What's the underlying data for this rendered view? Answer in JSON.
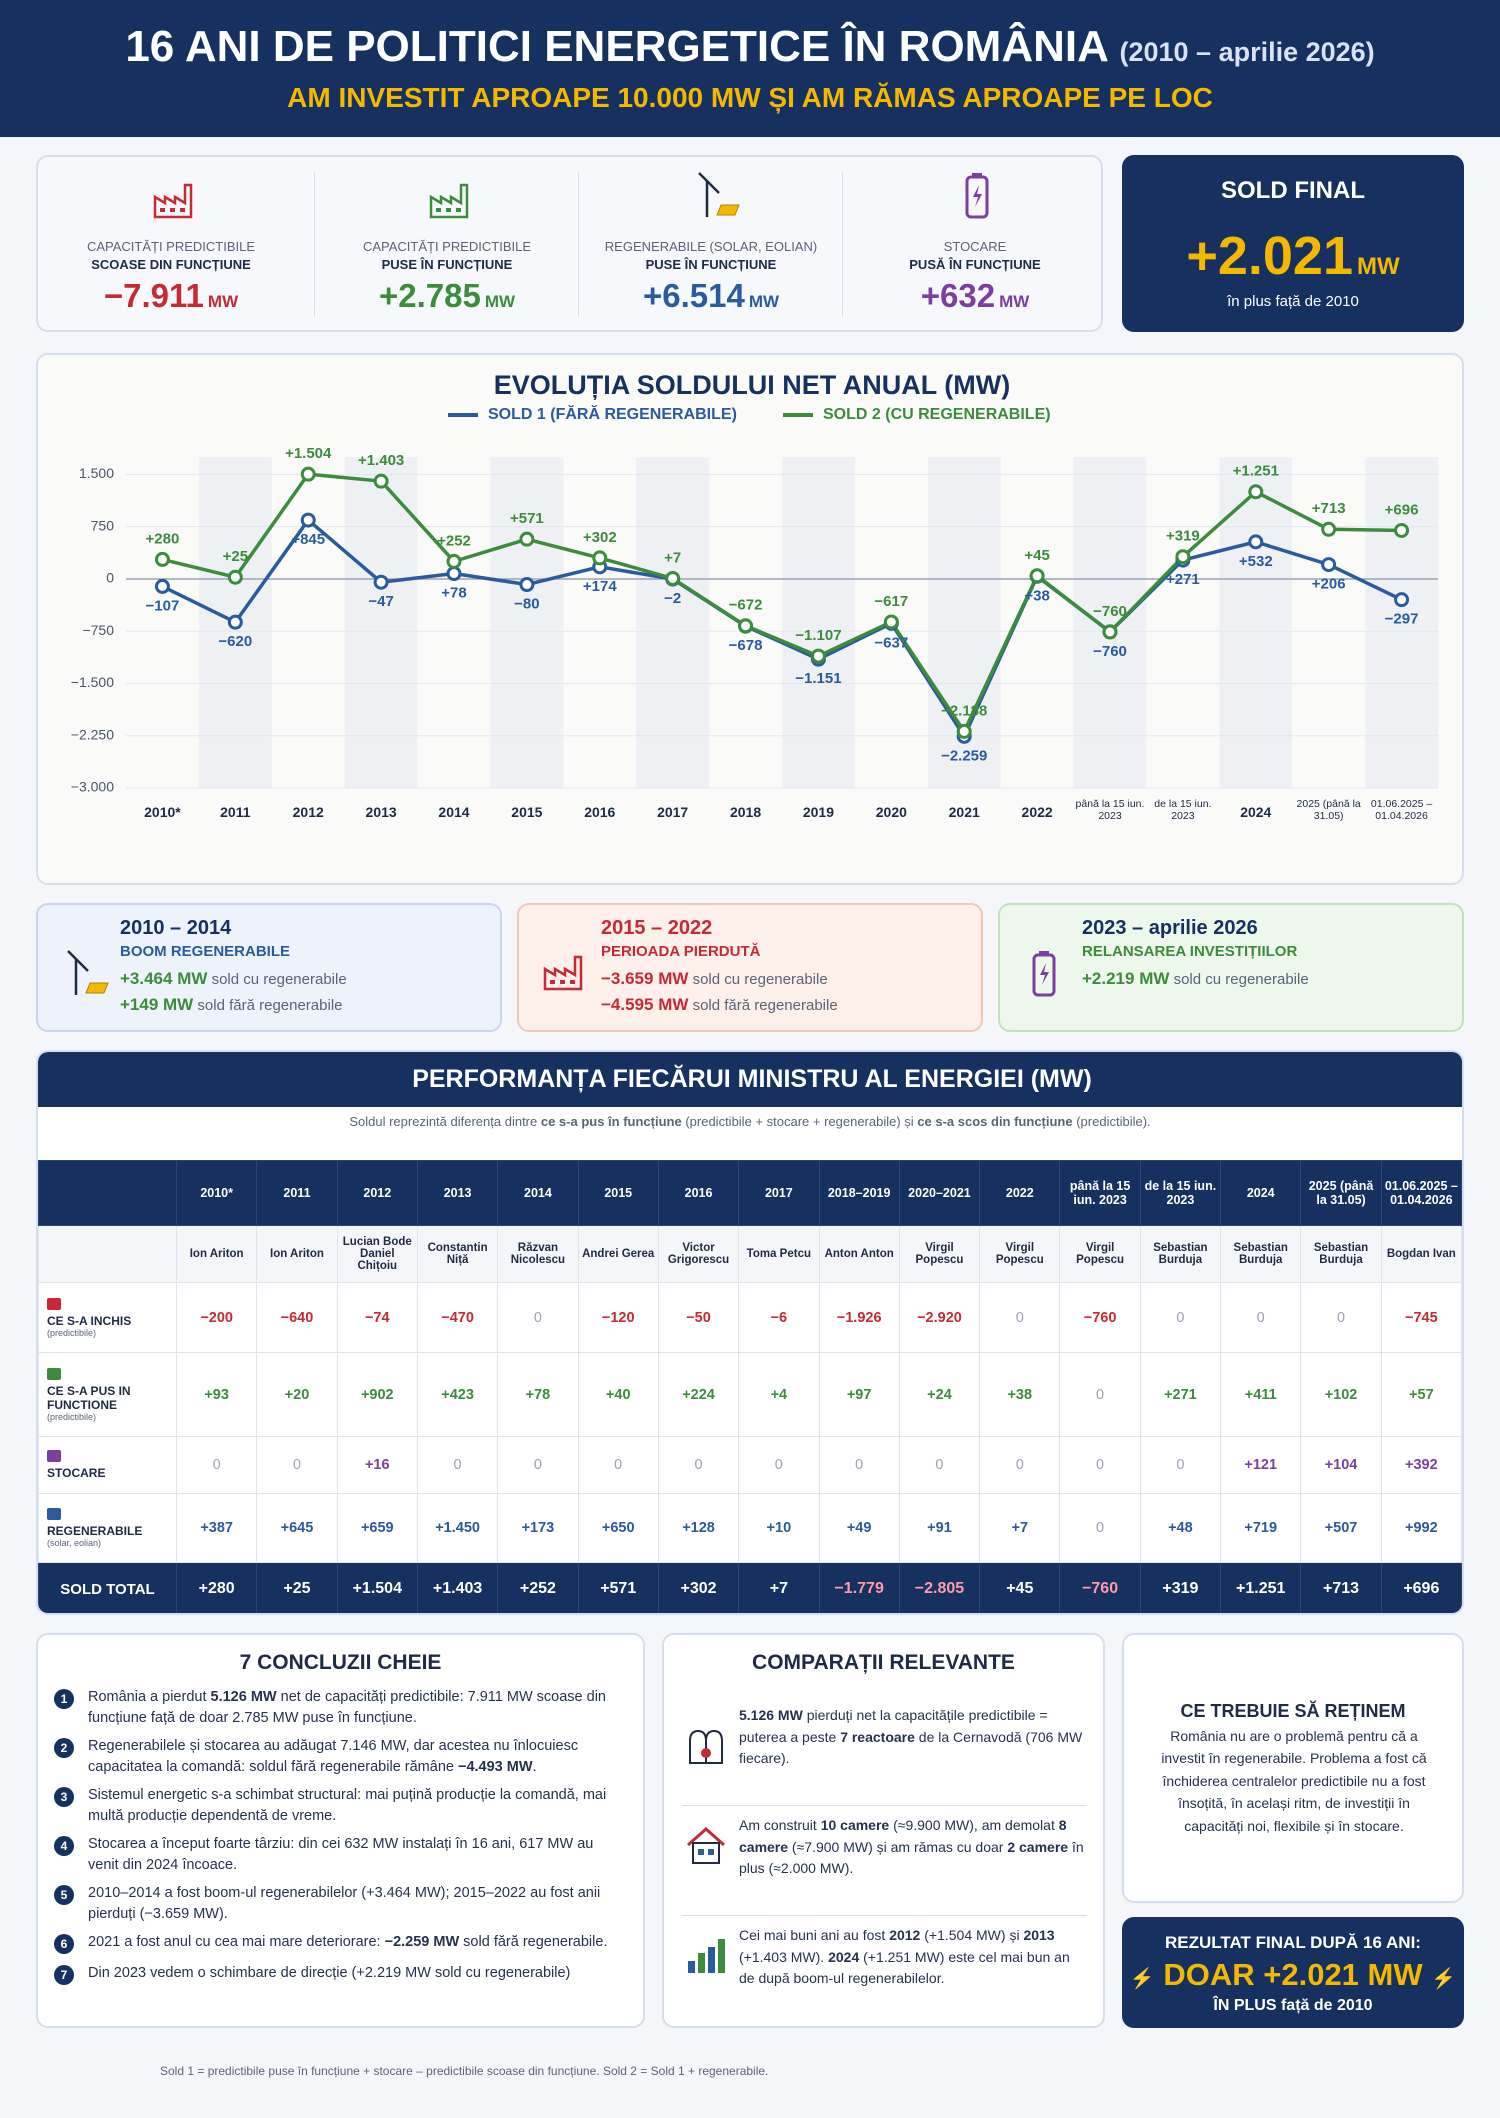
{
  "header": {
    "title": "16 ANI DE POLITICI ENERGETICE ÎN ROMÂNIA",
    "period": "(2010 – aprilie 2026)",
    "subtitle": "AM INVESTIT APROAPE 10.000 MW ȘI AM RĂMAS APROAPE PE LOC"
  },
  "kpis": [
    {
      "label": "CAPACITĂȚI PREDICTIBILE",
      "sublabel": "SCOASE DIN FUNCȚIUNE",
      "value": "−7.911",
      "unit": "MW"
    },
    {
      "label": "CAPACITĂȚI PREDICTIBILE",
      "sublabel": "PUSE ÎN FUNCȚIUNE",
      "value": "+2.785",
      "unit": "MW"
    },
    {
      "label": "REGENERABILE (SOLAR, EOLIAN)",
      "sublabel": "PUSE ÎN FUNCȚIUNE",
      "value": "+6.514",
      "unit": "MW"
    },
    {
      "label": "STOCARE",
      "sublabel": "PUSĂ ÎN FUNCȚIUNE",
      "value": "+632",
      "unit": "MW"
    }
  ],
  "sold_final": {
    "title": "SOLD FINAL",
    "value": "+2.021",
    "unit": "MW",
    "note": "în plus față de 2010"
  },
  "chart_data": {
    "type": "line",
    "title": "EVOLUȚIA SOLDULUI NET ANUAL (MW)",
    "categories": [
      "2010*",
      "2011",
      "2012",
      "2013",
      "2014",
      "2015",
      "2016",
      "2017",
      "2018",
      "2019",
      "2020",
      "2021",
      "2022",
      "până la 15 iun. 2023",
      "de la 15 iun. 2023",
      "2024",
      "2025 (până la 31.05)",
      "01.06.2025 – 01.04.2026"
    ],
    "series": [
      {
        "name": "SOLD 1 (FĂRĂ REGENERABILE)",
        "color": "#2b5a9e",
        "values": [
          -107,
          -620,
          845,
          -47,
          78,
          -80,
          174,
          -2,
          -678,
          -1151,
          -637,
          -2259,
          38,
          -760,
          271,
          532,
          206,
          -297
        ],
        "value_labels": [
          "−107",
          "−620",
          "+845",
          "−47",
          "+78",
          "−80",
          "+174",
          "−2",
          "−678",
          "−1.151",
          "−637",
          "−2.259",
          "+38",
          "−760",
          "+271",
          "+532",
          "+206",
          "−297"
        ]
      },
      {
        "name": "SOLD 2 (CU REGENERABILE)",
        "color": "#3d8b3d",
        "values": [
          280,
          25,
          1504,
          1403,
          252,
          571,
          302,
          7,
          -672,
          -1107,
          -617,
          -2188,
          45,
          -760,
          319,
          1251,
          713,
          696
        ],
        "value_labels": [
          "+280",
          "+25",
          "+1.504",
          "+1.403",
          "+252",
          "+571",
          "+302",
          "+7",
          "−672",
          "−1.107",
          "−617",
          "−2.188",
          "+45",
          "−760",
          "+319",
          "+1.251",
          "+713",
          "+696"
        ]
      }
    ],
    "ylim": [
      -3000,
      1750
    ],
    "yticks": [
      {
        "value": 1500,
        "label": "1.500"
      },
      750,
      0,
      {
        "value": -750,
        "label": "−750"
      },
      {
        "value": -1500,
        "label": "−1.500"
      },
      {
        "value": -2250,
        "label": "−2.250"
      },
      {
        "value": -3000,
        "label": "−3.000"
      }
    ],
    "grid": true
  },
  "periods": [
    {
      "title": "2010 – 2014",
      "subtitle": "BOOM REGENERABILE",
      "lines": [
        {
          "value": "+3.464 MW",
          "text": "sold cu regenerabile"
        },
        {
          "value": "+149 MW",
          "text": "sold fără regenerabile"
        }
      ]
    },
    {
      "title": "2015 – 2022",
      "subtitle": "PERIOADA PIERDUTĂ",
      "lines": [
        {
          "value": "−3.659 MW",
          "text": "sold cu regenerabile"
        },
        {
          "value": "−4.595 MW",
          "text": "sold fără regenerabile"
        }
      ]
    },
    {
      "title": "2023 – aprilie 2026",
      "subtitle": "RELANSAREA INVESTIȚIILOR",
      "lines": [
        {
          "value": "+2.219 MW",
          "text": "sold cu regenerabile"
        }
      ]
    }
  ],
  "table": {
    "title": "PERFORMANȚA FIECĂRUI MINISTRU AL ENERGIEI (MW)",
    "note": [
      "Soldul reprezintă diferența dintre ",
      {
        "bold": "ce s-a pus în funcțiune"
      },
      " (predictibile + stocare + regenerabile) și ",
      {
        "bold": "ce s-a scos din funcțiune"
      },
      " (predictibile)."
    ],
    "columns": [
      "2010*",
      "2011",
      "2012",
      "2013",
      "2014",
      "2015",
      "2016",
      "2017",
      "2018–2019",
      "2020–2021",
      "2022",
      "până la 15 iun. 2023",
      "de la 15 iun. 2023",
      "2024",
      "2025 (până la 31.05)",
      "01.06.2025 – 01.04.2026"
    ],
    "ministers": [
      "Ion Ariton",
      "Ion Ariton",
      "Lucian Bode Daniel Chițoiu",
      "Constantin Niță",
      "Răzvan Nicolescu",
      "Andrei Gerea",
      "Victor Grigorescu",
      "Toma Petcu",
      "Anton Anton",
      "Virgil Popescu",
      "Virgil Popescu",
      "Virgil Popescu",
      "Sebastian Burduja",
      "Sebastian Burduja",
      "Sebastian Burduja",
      "Bogdan Ivan"
    ],
    "rows": [
      {
        "label": "CE S-A INCHIS",
        "sublabel": "(predictibile)",
        "values": [
          "−200",
          "−640",
          "−74",
          "−470",
          "0",
          "−120",
          "−50",
          "−6",
          "−1.926",
          "−2.920",
          "0",
          "−760",
          "0",
          "0",
          "0",
          "−745"
        ]
      },
      {
        "label": "CE S-A PUS IN FUNCTIONE",
        "sublabel": "(predictibile)",
        "values": [
          "+93",
          "+20",
          "+902",
          "+423",
          "+78",
          "+40",
          "+224",
          "+4",
          "+97",
          "+24",
          "+38",
          "0",
          "+271",
          "+411",
          "+102",
          "+57"
        ]
      },
      {
        "label": "STOCARE",
        "values": [
          "0",
          "0",
          "+16",
          "0",
          "0",
          "0",
          "0",
          "0",
          "0",
          "0",
          "0",
          "0",
          "0",
          "+121",
          "+104",
          "+392"
        ]
      },
      {
        "label": "REGENERABILE",
        "sublabel": "(solar, eolian)",
        "values": [
          "+387",
          "+645",
          "+659",
          "+1.450",
          "+173",
          "+650",
          "+128",
          "+10",
          "+49",
          "+91",
          "+7",
          "0",
          "+48",
          "+719",
          "+507",
          "+992"
        ]
      }
    ],
    "total": {
      "label": "SOLD TOTAL",
      "values": [
        "+280",
        "+25",
        "+1.504",
        "+1.403",
        "+252",
        "+571",
        "+302",
        "+7",
        "−1.779",
        "−2.805",
        "+45",
        "−760",
        "+319",
        "+1.251",
        "+713",
        "+696"
      ]
    }
  },
  "conclusions": {
    "title": "7 CONCLUZII CHEIE",
    "items": [
      {
        "number": 1,
        "parts": [
          "România a pierdut ",
          {
            "bold": "5.126 MW"
          },
          " net de capacități predictibile: 7.911 MW scoase din funcțiune față de doar 2.785 MW puse în funcțiune."
        ]
      },
      {
        "number": 2,
        "parts": [
          "Regenerabilele și stocarea au adăugat 7.146 MW, dar acestea nu înlocuiesc capacitatea la comandă: soldul fără regenerabile rămâne ",
          {
            "bold": "−4.493 MW"
          },
          "."
        ]
      },
      {
        "number": 3,
        "parts": [
          "Sistemul energetic s-a schimbat structural: mai puțină producție la comandă, mai multă producție dependentă de vreme."
        ]
      },
      {
        "number": 4,
        "parts": [
          "Stocarea a început foarte târziu: din cei 632 MW instalați în 16 ani, 617 MW au venit din 2024 încoace."
        ]
      },
      {
        "number": 5,
        "parts": [
          "2010–2014 a fost boom-ul regenerabilelor (+3.464 MW); 2015–2022 au fost anii pierduți (−3.659 MW)."
        ]
      },
      {
        "number": 6,
        "parts": [
          "2021 a fost anul cu cea mai mare deteriorare: ",
          {
            "bold": "−2.259 MW"
          },
          " sold fără regenerabile."
        ]
      },
      {
        "number": 7,
        "parts": [
          "Din 2023 vedem o schimbare de direcție (+2.219 MW sold cu regenerabile)"
        ]
      }
    ]
  },
  "comparisons": {
    "title": "COMPARAȚII RELEVANTE",
    "items": [
      [
        {
          "bold": "5.126 MW"
        },
        " pierduți net la capacitățile predictibile = puterea a peste ",
        {
          "bold": "7 reactoare"
        },
        " de la Cernavodă (706 MW fiecare)."
      ],
      [
        "Am construit ",
        {
          "bold": "10 camere"
        },
        " (≈9.900 MW), am demolat ",
        {
          "bold": "8 camere"
        },
        " (≈7.900 MW) și am rămas cu doar ",
        {
          "bold": "2 camere"
        },
        " în plus (≈2.000 MW)."
      ],
      [
        "Cei mai buni ani au fost ",
        {
          "bold": "2012"
        },
        " (+1.504 MW) și ",
        {
          "bold": "2013"
        },
        " (+1.403 MW). ",
        {
          "bold": "2024"
        },
        " (+1.251 MW) este cel mai bun an de după boom-ul regenerabilelor."
      ]
    ]
  },
  "retain": {
    "title": "CE TREBUIE SĂ REȚINEM",
    "text": "România nu are o problemă pentru că a investit în regenerabile. Problema a fost că închiderea centralelor predictibile nu a fost însoțită, în același ritm, de investiții în capacități noi, flexibile și în stocare."
  },
  "result": {
    "title": "REZULTAT FINAL DUPĂ 16 ANI:",
    "value": "DOAR +2.021 MW",
    "note": "ÎN PLUS față de 2010"
  },
  "footer": "Sold 1 = predictibile puse în funcțiune + stocare – predictibile scoase din funcțiune. Sold 2 = Sold 1 + regenerabile."
}
